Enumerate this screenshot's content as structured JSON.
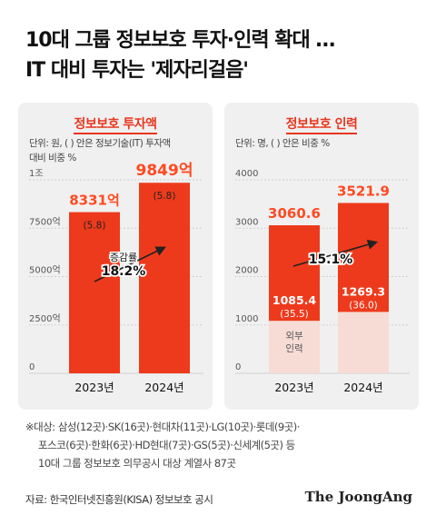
{
  "headline_line1": "10대 그룹 정보보호 투자·인력 확대 …",
  "headline_line2": "IT 대비 투자는 '제자리걸음'",
  "chart_data": [
    {
      "type": "bar",
      "title": "정보보호 투자액",
      "unit_note_line1": "단위: 원, ( ) 안은 정보기술(IT) 투자액",
      "unit_note_line2": "대비 비중 %",
      "categories": [
        "2023년",
        "2024년"
      ],
      "values": [
        8331,
        9849
      ],
      "value_labels": [
        "8331억",
        "9849억"
      ],
      "ratio_labels": [
        "(5.8)",
        "(5.8)"
      ],
      "y_ticks": [
        "1조",
        "7500억",
        "5000억",
        "2500억",
        "0"
      ],
      "y_tick_values": [
        10000,
        7500,
        5000,
        2500,
        0
      ],
      "ylim": [
        0,
        10000
      ],
      "growth_caption": "증감률",
      "growth_value": "18.2%",
      "colors": {
        "bar": "#ee3a1c",
        "top_label": "#ff4a22"
      }
    },
    {
      "type": "bar",
      "title": "정보보호 인력",
      "unit_note_line1": "단위: 명, ( ) 안은 비중 %",
      "categories": [
        "2023년",
        "2024년"
      ],
      "values": [
        3060.6,
        3521.9
      ],
      "value_labels": [
        "3060.6",
        "3521.9"
      ],
      "inner_values": [
        1085.4,
        1269.3
      ],
      "inner_value_labels": [
        "1085.4",
        "1269.3"
      ],
      "inner_ratio_labels": [
        "(35.5)",
        "(36.0)"
      ],
      "inner_series_label_line1": "외부",
      "inner_series_label_line2": "인력",
      "y_ticks": [
        "4000",
        "3000",
        "2000",
        "1000",
        "0"
      ],
      "y_tick_values": [
        4000,
        3000,
        2000,
        1000,
        0
      ],
      "ylim": [
        0,
        4000
      ],
      "growth_value": "15.1%",
      "colors": {
        "bar": "#ee3a1c",
        "inner": "#f7dcd6",
        "top_label": "#ff4a22"
      }
    }
  ],
  "footnote_line1": "※대상: 삼성(12곳)·SK(16곳)·현대차(11곳)·LG(10곳)·롯데(9곳)·",
  "footnote_line2": "포스코(6곳)·한화(6곳)·HD현대(7곳)·GS(5곳)·신세계(5곳) 등",
  "footnote_line3": "10대 그룹 정보보호 의무공시 대상 계열사 87곳",
  "source": "자료: 한국인터넷진흥원(KISA) 정보보호 공시",
  "brand": "The JoongAng"
}
